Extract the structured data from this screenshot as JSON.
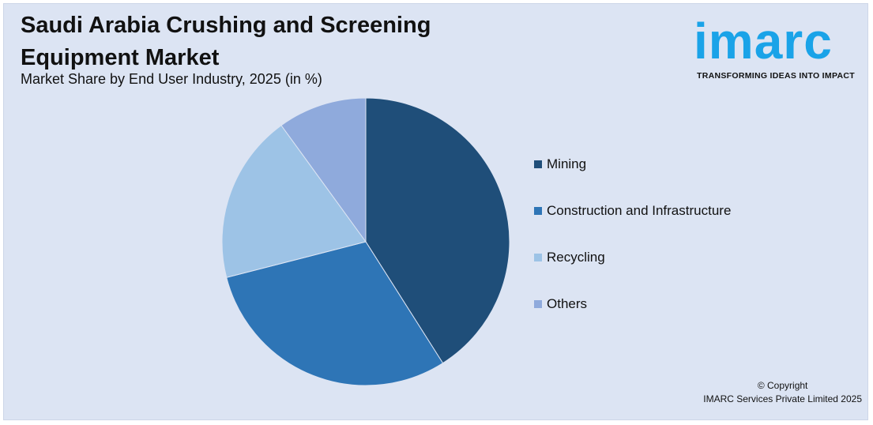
{
  "header": {
    "title": "Saudi Arabia Crushing and Screening Equipment Market",
    "subtitle": "Market Share by End User Industry, 2025 (in %)"
  },
  "logo": {
    "wordmark": "imarc",
    "tagline": "TRANSFORMING IDEAS INTO IMPACT",
    "color": "#1aa3e8"
  },
  "footer": {
    "copyright_line1": "© Copyright",
    "copyright_line2": "IMARC Services Private Limited 2025"
  },
  "chart_data": {
    "type": "pie",
    "title": "Saudi Arabia Crushing and Screening Equipment Market",
    "subtitle": "Market Share by End User Industry, 2025 (in %)",
    "legend_position": "right",
    "categories": [
      "Mining",
      "Construction and Infrastructure",
      "Recycling",
      "Others"
    ],
    "values": [
      41,
      30,
      19,
      10
    ],
    "colors": [
      "#1f4e79",
      "#2e75b6",
      "#9dc3e6",
      "#8faadc"
    ]
  }
}
